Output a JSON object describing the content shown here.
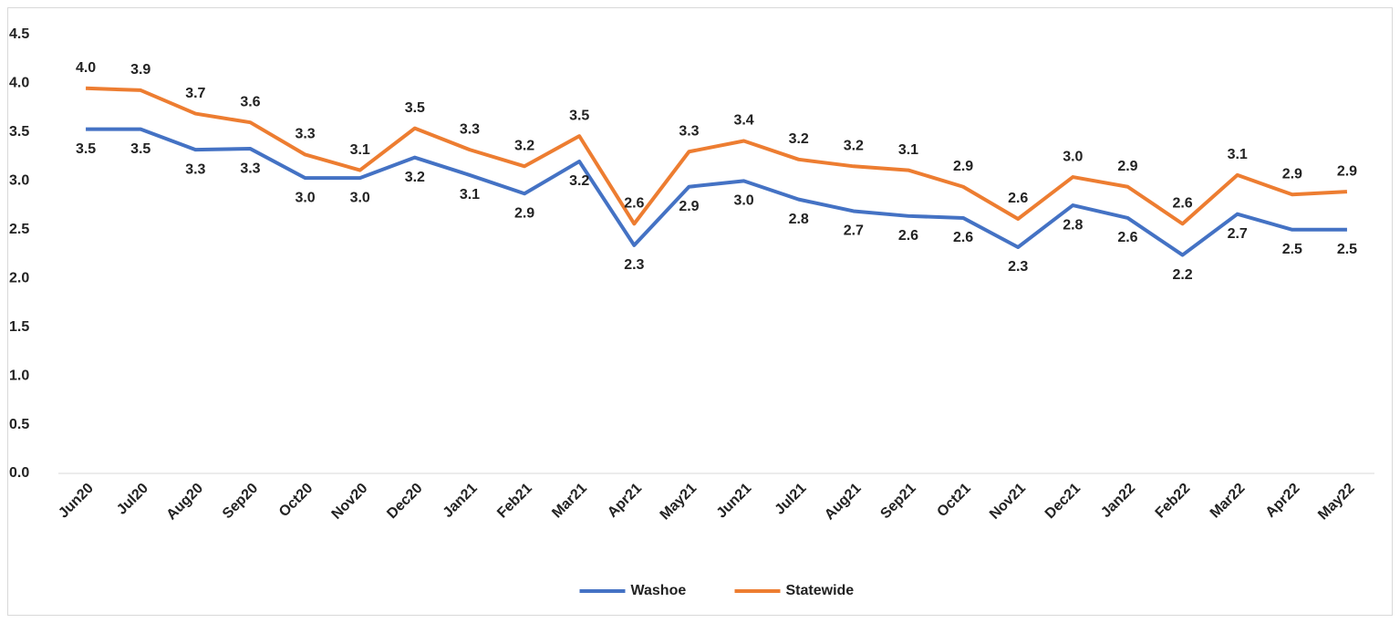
{
  "chart_data": {
    "type": "line",
    "categories": [
      "Jun20",
      "Jul20",
      "Aug20",
      "Sep20",
      "Oct20",
      "Nov20",
      "Dec20",
      "Jan21",
      "Feb21",
      "Mar21",
      "Apr21",
      "May21",
      "Jun21",
      "Jul21",
      "Aug21",
      "Sep21",
      "Oct21",
      "Nov21",
      "Dec21",
      "Jan22",
      "Feb22",
      "Mar22",
      "Apr22",
      "May22"
    ],
    "series": [
      {
        "name": "Washoe",
        "color": "#4472c4",
        "values": [
          3.53,
          3.53,
          3.32,
          3.33,
          3.03,
          3.03,
          3.24,
          3.06,
          2.87,
          3.2,
          2.34,
          2.94,
          3.0,
          2.81,
          2.69,
          2.64,
          2.62,
          2.32,
          2.75,
          2.62,
          2.24,
          2.66,
          2.5,
          2.5
        ],
        "value_labels": [
          "3.5",
          "3.5",
          "3.3",
          "3.3",
          "3.0",
          "3.0",
          "3.2",
          "3.1",
          "2.9",
          "3.2",
          "2.3",
          "2.9",
          "3.0",
          "2.8",
          "2.7",
          "2.6",
          "2.6",
          "2.3",
          "2.8",
          "2.6",
          "2.2",
          "2.7",
          "2.5",
          "2.5"
        ]
      },
      {
        "name": "Statewide",
        "color": "#ed7d31",
        "values": [
          3.95,
          3.93,
          3.69,
          3.6,
          3.27,
          3.11,
          3.54,
          3.32,
          3.15,
          3.46,
          2.56,
          3.3,
          3.41,
          3.22,
          3.15,
          3.11,
          2.94,
          2.61,
          3.04,
          2.94,
          2.56,
          3.06,
          2.86,
          2.89
        ],
        "value_labels": [
          "4.0",
          "3.9",
          "3.7",
          "3.6",
          "3.3",
          "3.1",
          "3.5",
          "3.3",
          "3.2",
          "3.5",
          "2.6",
          "3.3",
          "3.4",
          "3.2",
          "3.2",
          "3.1",
          "2.9",
          "2.6",
          "3.0",
          "2.9",
          "2.6",
          "3.1",
          "2.9",
          "2.9"
        ]
      }
    ],
    "ylim": [
      0,
      4.5
    ],
    "yticks": [
      {
        "value": 0,
        "label": "0.0"
      },
      {
        "value": 0.5,
        "label": "0.5"
      },
      {
        "value": 1,
        "label": "1.0"
      },
      {
        "value": 1.5,
        "label": "1.5"
      },
      {
        "value": 2,
        "label": "2.0"
      },
      {
        "value": 2.5,
        "label": "2.5"
      },
      {
        "value": 3,
        "label": "3.0"
      },
      {
        "value": 3.5,
        "label": "3.5"
      },
      {
        "value": 4,
        "label": "4.0"
      },
      {
        "value": 4.5,
        "label": "4.5"
      }
    ],
    "grid": false,
    "legend": "bottom"
  }
}
